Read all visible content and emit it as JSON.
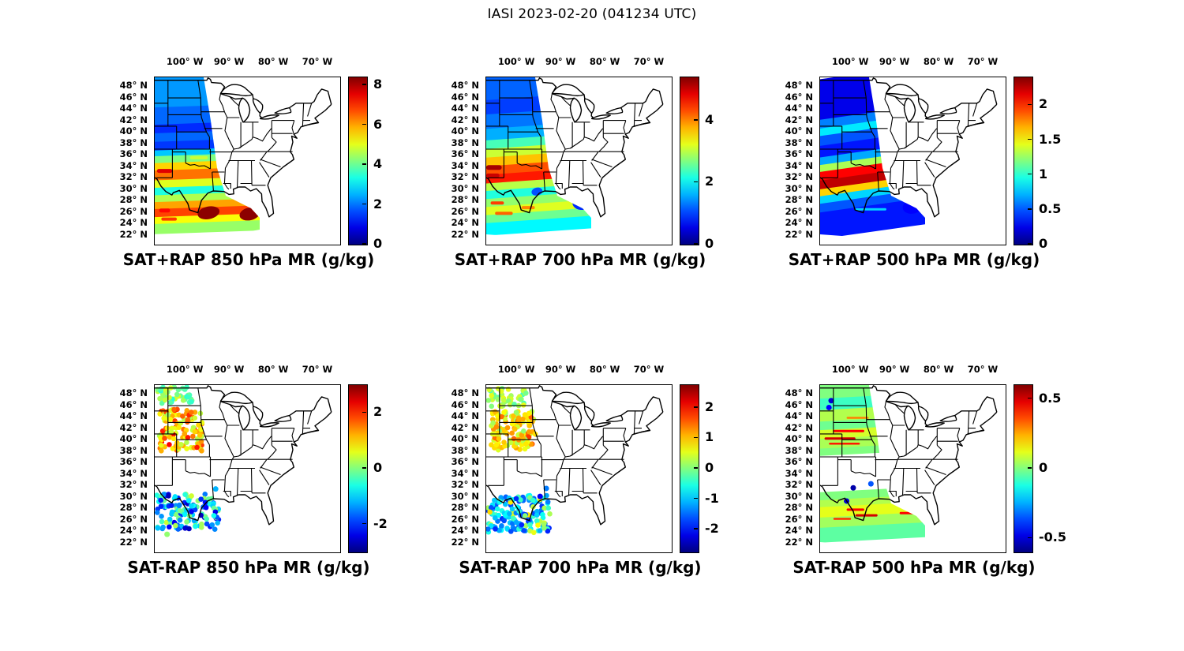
{
  "figure": {
    "title": "IASI 2023-02-20 (041234 UTC)"
  },
  "axes": {
    "lon_ticks": [
      {
        "v": -100,
        "label": "100° W"
      },
      {
        "v": -90,
        "label": "90° W"
      },
      {
        "v": -80,
        "label": "80° W"
      },
      {
        "v": -70,
        "label": "70° W"
      }
    ],
    "lat_ticks": [
      {
        "v": 48,
        "label": "48° N"
      },
      {
        "v": 46,
        "label": "46° N"
      },
      {
        "v": 44,
        "label": "44° N"
      },
      {
        "v": 42,
        "label": "42° N"
      },
      {
        "v": 40,
        "label": "40° N"
      },
      {
        "v": 38,
        "label": "38° N"
      },
      {
        "v": 36,
        "label": "36° N"
      },
      {
        "v": 34,
        "label": "34° N"
      },
      {
        "v": 32,
        "label": "32° N"
      },
      {
        "v": 30,
        "label": "30° N"
      },
      {
        "v": 28,
        "label": "28° N"
      },
      {
        "v": 26,
        "label": "26° N"
      },
      {
        "v": 24,
        "label": "24° N"
      },
      {
        "v": 22,
        "label": "22° N"
      }
    ]
  },
  "chart_data": {
    "type": "heatmap",
    "description": "Six geographic panels over the central/eastern United States showing IASI satellite moisture retrievals. Top row: retrieved mixing ratio (SAT+RAP). Bottom row: retrieval minus RAP model difference (SAT-RAP). Values in g/kg, jet colormap, satellite swath along ~93-107W.",
    "colormap": "jet",
    "panels_ref": "see panels[] for per-panel data"
  },
  "panels": [
    {
      "id": "sat-plus-rap-850",
      "kind": "swath",
      "row": 0,
      "col": 0,
      "title": "SAT+RAP 850 hPa MR (g/kg)",
      "units": "g/kg",
      "tilt_deg": -2,
      "colorbar": {
        "min": 0,
        "max": 8.4,
        "ticks": [
          {
            "v": 0,
            "label": "0"
          },
          {
            "v": 2,
            "label": "2"
          },
          {
            "v": 4,
            "label": "4"
          },
          {
            "v": 6,
            "label": "6"
          },
          {
            "v": 8,
            "label": "8"
          }
        ]
      },
      "bands": [
        [
          50,
          44.5,
          2.3
        ],
        [
          44.5,
          41.5,
          1.9
        ],
        [
          41.5,
          40,
          1.4
        ],
        [
          40,
          38.5,
          1.9
        ],
        [
          38.5,
          37,
          1.5
        ],
        [
          37,
          36,
          2.7
        ],
        [
          36,
          34.8,
          4.2
        ],
        [
          34.8,
          33.5,
          5.6
        ],
        [
          33.5,
          31.8,
          6.4
        ],
        [
          31.8,
          30.5,
          5.0
        ],
        [
          30.5,
          29.2,
          3.4
        ],
        [
          29.2,
          28,
          4.6
        ],
        [
          28,
          26.8,
          6.0
        ],
        [
          26.8,
          25.4,
          6.8
        ],
        [
          25.4,
          24.2,
          5.2
        ],
        [
          24.2,
          22.5,
          4.4
        ]
      ],
      "streaks": [
        [
          33.2,
          -106.5,
          -103,
          7.6,
          5
        ],
        [
          26.3,
          -106,
          -103.5,
          7.3,
          5
        ],
        [
          24.8,
          -105.5,
          -102,
          6.9,
          4
        ],
        [
          35.5,
          -99,
          -95,
          4.8,
          4
        ]
      ],
      "blobs": [
        [
          25.9,
          -94.8,
          8.3,
          14,
          8
        ],
        [
          25.7,
          -85.5,
          8.3,
          13,
          8
        ]
      ],
      "points": [],
      "clusters": []
    },
    {
      "id": "sat-plus-rap-700",
      "kind": "swath",
      "row": 0,
      "col": 1,
      "title": "SAT+RAP 700 hPa MR (g/kg)",
      "units": "g/kg",
      "tilt_deg": -4,
      "colorbar": {
        "min": 0,
        "max": 5.4,
        "ticks": [
          {
            "v": 0,
            "label": "0"
          },
          {
            "v": 2,
            "label": "2"
          },
          {
            "v": 4,
            "label": "4"
          }
        ]
      },
      "bands": [
        [
          50,
          46,
          1.2
        ],
        [
          46,
          43.5,
          1.0
        ],
        [
          43.5,
          41,
          1.3
        ],
        [
          41,
          39,
          1.6
        ],
        [
          39,
          37.5,
          2.4
        ],
        [
          37.5,
          36,
          3.1
        ],
        [
          36,
          34.5,
          3.7
        ],
        [
          34.5,
          33,
          4.3
        ],
        [
          33,
          31.5,
          4.6
        ],
        [
          31.5,
          30.2,
          3.0
        ],
        [
          30.2,
          28.8,
          2.2
        ],
        [
          28.8,
          27.4,
          2.8
        ],
        [
          27.4,
          26,
          3.2
        ],
        [
          26,
          24.6,
          2.6
        ],
        [
          24.6,
          22.5,
          2.0
        ]
      ],
      "streaks": [
        [
          33.8,
          -107,
          -103.5,
          5.2,
          6
        ],
        [
          32.4,
          -107,
          -104,
          5.0,
          5
        ],
        [
          27.6,
          -106,
          -103,
          4.4,
          4
        ],
        [
          25.8,
          -105,
          -101,
          4.2,
          4
        ],
        [
          26.8,
          -99,
          -96,
          4.0,
          4
        ]
      ],
      "blobs": [
        [
          27.8,
          -85,
          0.9,
          14,
          10
        ],
        [
          29.6,
          -95.5,
          1.1,
          7,
          5
        ]
      ],
      "points": [],
      "clusters": []
    },
    {
      "id": "sat-plus-rap-500",
      "kind": "swath",
      "row": 0,
      "col": 2,
      "title": "SAT+RAP 500 hPa MR (g/kg)",
      "units": "g/kg",
      "tilt_deg": -8,
      "colorbar": {
        "min": 0,
        "max": 2.4,
        "ticks": [
          {
            "v": 0,
            "label": "0"
          },
          {
            "v": 0.5,
            "label": "0.5"
          },
          {
            "v": 1,
            "label": "1"
          },
          {
            "v": 1.5,
            "label": "1.5"
          },
          {
            "v": 2,
            "label": "2"
          }
        ]
      },
      "bands": [
        [
          50,
          43,
          0.25
        ],
        [
          43,
          41.5,
          0.6
        ],
        [
          41.5,
          40.2,
          0.85
        ],
        [
          40.2,
          38.5,
          0.5
        ],
        [
          38.5,
          36.5,
          0.35
        ],
        [
          36.5,
          35.2,
          0.7
        ],
        [
          35.2,
          34,
          1.3
        ],
        [
          34,
          32.5,
          2.1
        ],
        [
          32.5,
          31,
          2.25
        ],
        [
          31,
          29.8,
          1.6
        ],
        [
          29.8,
          28.5,
          0.8
        ],
        [
          28.5,
          27,
          0.5
        ],
        [
          27,
          22.5,
          0.35
        ]
      ],
      "streaks": [
        [
          26.5,
          -99,
          -92,
          0.8,
          3
        ]
      ],
      "blobs": [
        [
          27,
          -86,
          0.3,
          13,
          9
        ]
      ],
      "points": [],
      "clusters": []
    },
    {
      "id": "sat-minus-rap-850",
      "kind": "scatter",
      "row": 1,
      "col": 0,
      "title": "SAT-RAP 850 hPa MR (g/kg)",
      "units": "g/kg",
      "tilt_deg": 0,
      "colorbar": {
        "min": -3,
        "max": 3,
        "ticks": [
          {
            "v": -2,
            "label": "-2"
          },
          {
            "v": 0,
            "label": "0"
          },
          {
            "v": 2,
            "label": "2"
          }
        ]
      },
      "bands": [],
      "streaks": [],
      "blobs": [],
      "clusters": [
        {
          "lat": [
            46.3,
            49.6
          ],
          "lon": [
            -106.5,
            -98.5
          ],
          "n": 45,
          "v": [
            -0.6,
            0.7
          ]
        },
        {
          "lat": [
            38,
            45.3
          ],
          "lon": [
            -106,
            -96.3
          ],
          "n": 120,
          "v": [
            0.2,
            1.7
          ],
          "hot": {
            "frac": 0.15,
            "v": [
              1.7,
              2.3
            ]
          }
        },
        {
          "lat": [
            24.3,
            30.5
          ],
          "lon": [
            -107,
            -92.5
          ],
          "n": 140,
          "v": [
            -2.7,
            -0.5
          ],
          "hot": {
            "frac": 0.25,
            "v": [
              -0.4,
              0.5
            ]
          }
        }
      ],
      "points": [
        [
          -93.2,
          31.4,
          -1.2
        ],
        [
          -106.3,
          24.6,
          -1.1
        ],
        [
          -104.2,
          23.5,
          0.1
        ]
      ]
    },
    {
      "id": "sat-minus-rap-700",
      "kind": "scatter",
      "row": 1,
      "col": 1,
      "title": "SAT-RAP 700 hPa MR (g/kg)",
      "units": "g/kg",
      "tilt_deg": 0,
      "colorbar": {
        "min": -2.75,
        "max": 2.75,
        "ticks": [
          {
            "v": -2,
            "label": "-2"
          },
          {
            "v": -1,
            "label": "-1"
          },
          {
            "v": 0,
            "label": "0"
          },
          {
            "v": 1,
            "label": "1"
          },
          {
            "v": 2,
            "label": "2"
          }
        ]
      },
      "bands": [],
      "streaks": [],
      "blobs": [],
      "clusters": [
        {
          "lat": [
            45.8,
            49.6
          ],
          "lon": [
            -106.5,
            -97.8
          ],
          "n": 55,
          "v": [
            -0.4,
            0.6
          ]
        },
        {
          "lat": [
            38,
            45
          ],
          "lon": [
            -106,
            -95.8
          ],
          "n": 120,
          "v": [
            0.1,
            1.2
          ],
          "hot": {
            "frac": 0.12,
            "v": [
              1.2,
              1.8
            ]
          }
        },
        {
          "lat": [
            23.8,
            30.3
          ],
          "lon": [
            -107,
            -92.5
          ],
          "n": 160,
          "v": [
            -1.9,
            -0.3
          ],
          "hot": {
            "frac": 0.18,
            "v": [
              -0.2,
              0.9
            ]
          }
        }
      ],
      "points": [
        [
          -93.4,
          31.5,
          -1.4
        ],
        [
          -94.8,
          30.1,
          -2.1
        ]
      ]
    },
    {
      "id": "sat-minus-rap-500",
      "kind": "swath",
      "row": 1,
      "col": 2,
      "title": "SAT-RAP 500 hPa MR (g/kg)",
      "units": "g/kg",
      "tilt_deg": -3,
      "colorbar": {
        "min": -0.6,
        "max": 0.6,
        "ticks": [
          {
            "v": -0.5,
            "label": "-0.5"
          },
          {
            "v": 0,
            "label": "0"
          },
          {
            "v": 0.5,
            "label": "0.5"
          }
        ]
      },
      "bands": [
        [
          50,
          47.5,
          0.0
        ],
        [
          47.5,
          45.5,
          -0.08
        ],
        [
          45.5,
          43.5,
          0.06
        ],
        [
          43.5,
          42,
          -0.02
        ],
        [
          42,
          40.5,
          0.1
        ],
        [
          40.5,
          38.8,
          0.05
        ],
        [
          38.8,
          37.6,
          0.0
        ],
        [
          31.2,
          29.8,
          0.0
        ],
        [
          29.8,
          28.6,
          0.06
        ],
        [
          28.6,
          26.8,
          0.12
        ],
        [
          26.8,
          25,
          0.04
        ],
        [
          25,
          22.5,
          -0.04
        ]
      ],
      "streaks": [
        [
          41.5,
          -104,
          -97,
          0.45,
          3
        ],
        [
          40.2,
          -106,
          -99,
          0.5,
          3
        ],
        [
          39.3,
          -105,
          -98,
          0.42,
          2.5
        ],
        [
          43.8,
          -101,
          -96,
          0.3,
          2.5
        ],
        [
          27.8,
          -101,
          -97,
          0.45,
          3
        ],
        [
          26.8,
          -99,
          -94,
          0.5,
          3
        ],
        [
          26.2,
          -104,
          -100,
          0.4,
          2.5
        ],
        [
          27.2,
          -89,
          -84,
          0.45,
          3
        ]
      ],
      "blobs": [],
      "clusters": [],
      "points": [
        [
          -104.5,
          46.8,
          -0.5
        ],
        [
          -105,
          45.6,
          -0.45
        ],
        [
          -99.5,
          31.6,
          -0.55
        ],
        [
          -95.5,
          32.3,
          -0.35
        ],
        [
          -101,
          29.3,
          -0.5
        ]
      ]
    }
  ]
}
